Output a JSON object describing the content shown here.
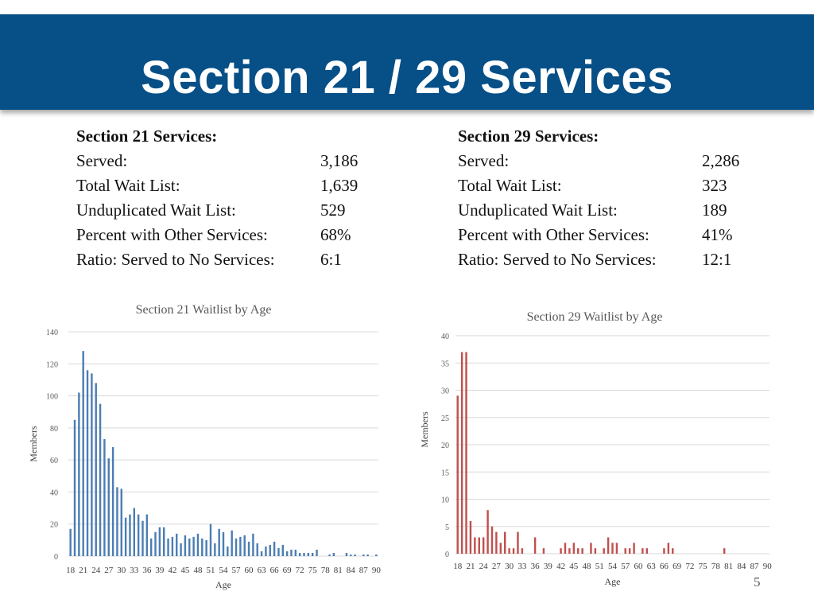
{
  "header": {
    "title": "Section 21 / 29 Services"
  },
  "sections": [
    {
      "heading": "Section 21 Services:",
      "rows": [
        {
          "label": "Served:",
          "value": "3,186"
        },
        {
          "label": "Total Wait List:",
          "value": "1,639"
        },
        {
          "label": "Unduplicated Wait List:",
          "value": "529"
        },
        {
          "label": "Percent with Other Services:",
          "value": "68%"
        },
        {
          "label": "Ratio: Served to No Services:",
          "value": "6:1"
        }
      ]
    },
    {
      "heading": "Section 29 Services:",
      "rows": [
        {
          "label": "Served:",
          "value": "2,286"
        },
        {
          "label": "Total Wait List:",
          "value": "323"
        },
        {
          "label": "Unduplicated Wait List:",
          "value": "189"
        },
        {
          "label": "Percent with Other Services:",
          "value": "41%"
        },
        {
          "label": "Ratio: Served to No Services:",
          "value": "12:1"
        }
      ]
    }
  ],
  "chart_data": [
    {
      "type": "bar",
      "title": "Section 21 Waitlist by Age",
      "xlabel": "Age",
      "ylabel": "Members",
      "ylim": [
        0,
        140
      ],
      "yticks": [
        0,
        20,
        40,
        60,
        80,
        100,
        120,
        140
      ],
      "x_tick_labels": [
        "18",
        "21",
        "24",
        "27",
        "30",
        "33",
        "36",
        "39",
        "42",
        "45",
        "48",
        "51",
        "54",
        "57",
        "60",
        "63",
        "66",
        "69",
        "72",
        "75",
        "78",
        "81",
        "84",
        "87",
        "90"
      ],
      "categories": [
        18,
        19,
        20,
        21,
        22,
        23,
        24,
        25,
        26,
        27,
        28,
        29,
        30,
        31,
        32,
        33,
        34,
        35,
        36,
        37,
        38,
        39,
        40,
        41,
        42,
        43,
        44,
        45,
        46,
        47,
        48,
        49,
        50,
        51,
        52,
        53,
        54,
        55,
        56,
        57,
        58,
        59,
        60,
        61,
        62,
        63,
        64,
        65,
        66,
        67,
        68,
        69,
        70,
        71,
        72,
        73,
        74,
        75,
        76,
        77,
        78,
        79,
        80,
        81,
        82,
        83,
        84,
        85,
        86,
        87,
        88,
        89,
        90
      ],
      "values": [
        17,
        85,
        102,
        128,
        116,
        114,
        108,
        95,
        73,
        61,
        68,
        43,
        42,
        24,
        26,
        30,
        26,
        22,
        26,
        11,
        15,
        18,
        18,
        11,
        12,
        14,
        8,
        13,
        11,
        12,
        14,
        11,
        10,
        20,
        8,
        17,
        15,
        6,
        16,
        11,
        12,
        13,
        9,
        14,
        8,
        3,
        6,
        7,
        9,
        5,
        7,
        3,
        4,
        4,
        2,
        2,
        2,
        2,
        4,
        0,
        0,
        1,
        2,
        0,
        0,
        2,
        1,
        1,
        0,
        1,
        1,
        0,
        1
      ],
      "color": "#4a7db3",
      "grid": true
    },
    {
      "type": "bar",
      "title": "Section 29 Waitlist by Age",
      "xlabel": "Age",
      "ylabel": "Members",
      "ylim": [
        0,
        40
      ],
      "yticks": [
        0,
        5,
        10,
        15,
        20,
        25,
        30,
        35,
        40
      ],
      "x_tick_labels": [
        "18",
        "21",
        "24",
        "27",
        "30",
        "33",
        "36",
        "39",
        "42",
        "45",
        "48",
        "51",
        "54",
        "57",
        "60",
        "63",
        "66",
        "69",
        "72",
        "75",
        "78",
        "81",
        "84",
        "87",
        "90"
      ],
      "categories": [
        18,
        19,
        20,
        21,
        22,
        23,
        24,
        25,
        26,
        27,
        28,
        29,
        30,
        31,
        32,
        33,
        34,
        35,
        36,
        37,
        38,
        39,
        40,
        41,
        42,
        43,
        44,
        45,
        46,
        47,
        48,
        49,
        50,
        51,
        52,
        53,
        54,
        55,
        56,
        57,
        58,
        59,
        60,
        61,
        62,
        63,
        64,
        65,
        66,
        67,
        68,
        69,
        70,
        71,
        72,
        73,
        74,
        75,
        76,
        77,
        78,
        79,
        80,
        81,
        82,
        83,
        84,
        85,
        86,
        87,
        88,
        89,
        90
      ],
      "values": [
        29,
        37,
        37,
        6,
        3,
        3,
        3,
        8,
        5,
        4,
        2,
        4,
        1,
        1,
        4,
        1,
        0,
        0,
        3,
        0,
        1,
        0,
        0,
        0,
        1,
        2,
        1,
        2,
        1,
        1,
        0,
        2,
        1,
        0,
        1,
        3,
        2,
        2,
        0,
        1,
        1,
        2,
        0,
        1,
        1,
        0,
        0,
        0,
        1,
        2,
        1,
        0,
        0,
        0,
        0,
        0,
        0,
        0,
        0,
        0,
        0,
        0,
        1,
        0,
        0,
        0,
        0,
        0,
        0,
        0,
        0,
        0,
        0
      ],
      "color": "#c0504d",
      "grid": true
    }
  ],
  "footer": {
    "page_number": "5"
  }
}
